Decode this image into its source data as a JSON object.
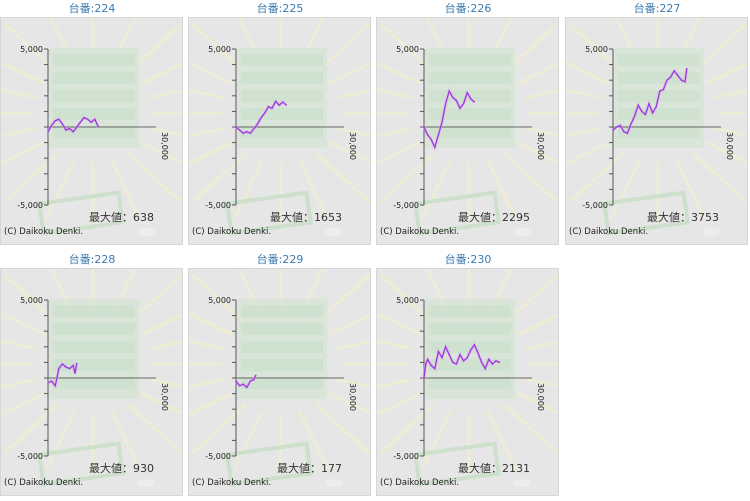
{
  "colors": {
    "line": "#9933dd",
    "title": "#3b7bb0",
    "axis": "#555555"
  },
  "copyright": "(C) Daikoku Denki.",
  "max_label": "最大値：",
  "chart_data": [
    {
      "type": "line",
      "title": "台番:224",
      "max": "638",
      "yticks": [
        "5,000",
        "-5,000"
      ],
      "xtick": "30,000",
      "ylim": [
        -5000,
        5000
      ],
      "xlim": [
        0,
        30000
      ],
      "x": [
        0,
        1000,
        2000,
        3000,
        4000,
        5000,
        6000,
        7000,
        8000,
        9000,
        10000,
        11000,
        12000,
        13000,
        14000
      ],
      "y": [
        -300,
        100,
        400,
        500,
        200,
        -200,
        -100,
        -300,
        0,
        300,
        600,
        500,
        300,
        500,
        0
      ]
    },
    {
      "type": "line",
      "title": "台番:225",
      "max": "1653",
      "yticks": [
        "5,000",
        "-5,000"
      ],
      "xtick": "30,000",
      "ylim": [
        -5000,
        5000
      ],
      "xlim": [
        0,
        30000
      ],
      "x": [
        0,
        1000,
        2000,
        3000,
        4000,
        5000,
        6000,
        7000,
        8000,
        9000,
        10000,
        11000,
        12000,
        13000,
        14000
      ],
      "y": [
        0,
        -200,
        -400,
        -300,
        -400,
        -100,
        200,
        600,
        900,
        1300,
        1200,
        1650,
        1400,
        1600,
        1400
      ]
    },
    {
      "type": "line",
      "title": "台番:226",
      "max": "2295",
      "yticks": [
        "5,000",
        "-5,000"
      ],
      "xtick": "30,000",
      "ylim": [
        -5000,
        5000
      ],
      "xlim": [
        0,
        30000
      ],
      "x": [
        0,
        1000,
        2000,
        3000,
        4000,
        5000,
        6000,
        7000,
        8000,
        9000,
        10000,
        11000,
        12000,
        13000,
        14000
      ],
      "y": [
        0,
        -500,
        -800,
        -1300,
        -500,
        300,
        1500,
        2300,
        1900,
        1700,
        1200,
        1500,
        2200,
        1800,
        1600
      ]
    },
    {
      "type": "line",
      "title": "台番:227",
      "max": "3753",
      "yticks": [
        "5,000",
        "-5,000"
      ],
      "xtick": "30,000",
      "ylim": [
        -5000,
        5000
      ],
      "xlim": [
        0,
        30000
      ],
      "x": [
        0,
        1000,
        2000,
        3000,
        4000,
        5000,
        6000,
        7000,
        8000,
        9000,
        10000,
        11000,
        12000,
        13000,
        14000,
        15000,
        16000,
        17000,
        18000,
        19000,
        20000,
        20500
      ],
      "y": [
        -200,
        0,
        100,
        -300,
        -400,
        200,
        700,
        1400,
        1000,
        800,
        1500,
        900,
        1300,
        2300,
        2400,
        3000,
        3200,
        3600,
        3300,
        3000,
        2900,
        3753
      ]
    },
    {
      "type": "line",
      "title": "台番:228",
      "max": "930",
      "yticks": [
        "5,000",
        "-5,000"
      ],
      "xtick": "30,000",
      "ylim": [
        -5000,
        5000
      ],
      "xlim": [
        0,
        30000
      ],
      "x": [
        0,
        1000,
        2000,
        2500,
        3000,
        4000,
        5000,
        6000,
        7000,
        7500,
        8000
      ],
      "y": [
        -300,
        -200,
        -500,
        0,
        600,
        900,
        700,
        600,
        800,
        300,
        930
      ]
    },
    {
      "type": "line",
      "title": "台番:229",
      "max": "177",
      "yticks": [
        "5,000",
        "-5,000"
      ],
      "xtick": "30,000",
      "ylim": [
        -5000,
        5000
      ],
      "xlim": [
        0,
        30000
      ],
      "x": [
        0,
        1000,
        2000,
        3000,
        4000,
        5000,
        5500
      ],
      "y": [
        -200,
        -500,
        -400,
        -600,
        -200,
        -100,
        177
      ]
    },
    {
      "type": "line",
      "title": "台番:230",
      "max": "2131",
      "yticks": [
        "5,000",
        "-5,000"
      ],
      "xtick": "30,000",
      "ylim": [
        -5000,
        5000
      ],
      "xlim": [
        0,
        30000
      ],
      "x": [
        0,
        500,
        1000,
        2000,
        3000,
        4000,
        5000,
        6000,
        7000,
        8000,
        9000,
        10000,
        11000,
        12000,
        13000,
        14000,
        15000,
        16000,
        17000,
        18000,
        19000,
        20000,
        21000
      ],
      "y": [
        0,
        900,
        1200,
        800,
        600,
        1700,
        1300,
        2000,
        1500,
        1000,
        900,
        1500,
        1100,
        1300,
        1800,
        2131,
        1600,
        1000,
        600,
        1200,
        900,
        1100,
        1000
      ]
    }
  ]
}
